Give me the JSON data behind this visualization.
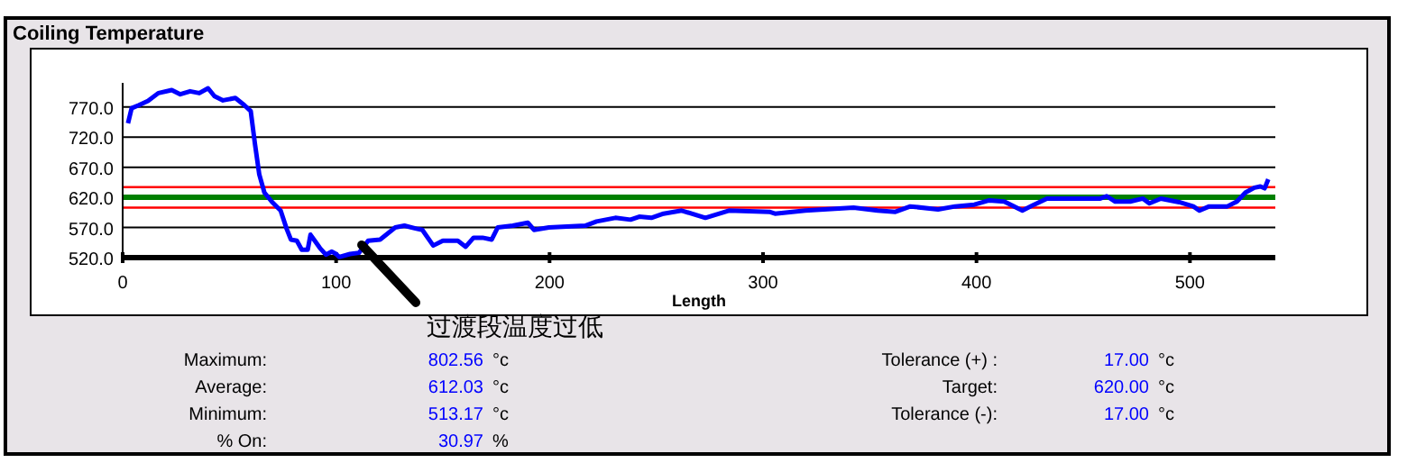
{
  "chart_data": {
    "type": "line",
    "title": "Coiling Temperature",
    "xlabel": "Length",
    "xlim": [
      0,
      540
    ],
    "ylim": [
      520,
      810
    ],
    "xticks": [
      0,
      100,
      200,
      300,
      400,
      500
    ],
    "yticks": [
      {
        "value": 520,
        "label": "520.0"
      },
      {
        "value": 570,
        "label": "570.0"
      },
      {
        "value": 620,
        "label": "620.0"
      },
      {
        "value": 670,
        "label": "670.0"
      },
      {
        "value": 720,
        "label": "720.0"
      },
      {
        "value": 770,
        "label": "770.0"
      }
    ],
    "grid": "y",
    "marker": "none",
    "line_style": "solid",
    "ref_lines": [
      {
        "axis": "y",
        "value": 637,
        "color": "#ff0000"
      },
      {
        "axis": "y",
        "value": 620,
        "color": "#008000"
      },
      {
        "axis": "y",
        "value": 603,
        "color": "#ff0000"
      }
    ],
    "series": [
      {
        "color": "#0000ff",
        "x": [
          2.5,
          4.2,
          7.6,
          11.9,
          16.7,
          23,
          27,
          31.6,
          35.9,
          40,
          43,
          47,
          52.8,
          57,
          60,
          62,
          64,
          66.4,
          69.8,
          74,
          76.8,
          78.8,
          81.6,
          83.9,
          86.7,
          88,
          90,
          92.4,
          95.2,
          98,
          100,
          101.4,
          106.5,
          110.7,
          115,
          120.6,
          127.7,
          132,
          137.6,
          140.4,
          145.5,
          150,
          157,
          160.7,
          164.4,
          168.6,
          172.9,
          175.7,
          182.8,
          189.8,
          192.7,
          199.7,
          216.7,
          222,
          230.8,
          237.9,
          242,
          247.7,
          253.4,
          261.9,
          273,
          284,
          303,
          305.6,
          319.8,
          342.4,
          353.7,
          362,
          369,
          382,
          390,
          399,
          406,
          413,
          421.5,
          427,
          433,
          458,
          461,
          465,
          472,
          478,
          481,
          486.4,
          495,
          501.6,
          504.5,
          509,
          517.5,
          522,
          526,
          530.2,
          533,
          535,
          536.7
        ],
        "values": [
          743,
          768,
          773,
          780,
          793,
          798,
          791,
          796,
          793,
          801,
          788,
          781,
          785,
          773,
          763,
          708,
          658,
          628,
          613,
          598,
          568,
          550,
          548,
          533,
          533,
          558,
          548,
          536,
          525,
          530,
          526,
          521,
          526,
          528,
          548,
          550,
          570,
          573,
          568,
          566,
          540,
          548,
          548,
          538,
          553,
          553,
          550,
          570,
          573,
          578,
          566,
          570,
          573,
          580,
          586,
          583,
          588,
          586,
          593,
          598,
          586,
          598,
          596,
          593,
          598,
          603,
          598,
          596,
          605,
          600,
          605,
          608,
          615,
          613,
          598,
          608,
          618,
          618,
          622,
          613,
          613,
          618,
          610,
          618,
          612,
          605,
          598,
          605,
          605,
          613,
          628,
          636,
          638,
          635,
          650
        ]
      }
    ],
    "annotations": [
      "Maximum:",
      "802.56",
      "°c",
      "Average:",
      "612.03",
      "°c",
      "Minimum:",
      "513.17",
      "°c",
      "% On:",
      "30.97",
      "%",
      "Tolerance (+) :",
      "17.00",
      "°c",
      "Target:",
      "620.00",
      "°c",
      "Tolerance (-):",
      "17.00",
      "°c",
      {
        "text": "过渡段温度过低",
        "x": 112,
        "y": 541
      }
    ]
  }
}
